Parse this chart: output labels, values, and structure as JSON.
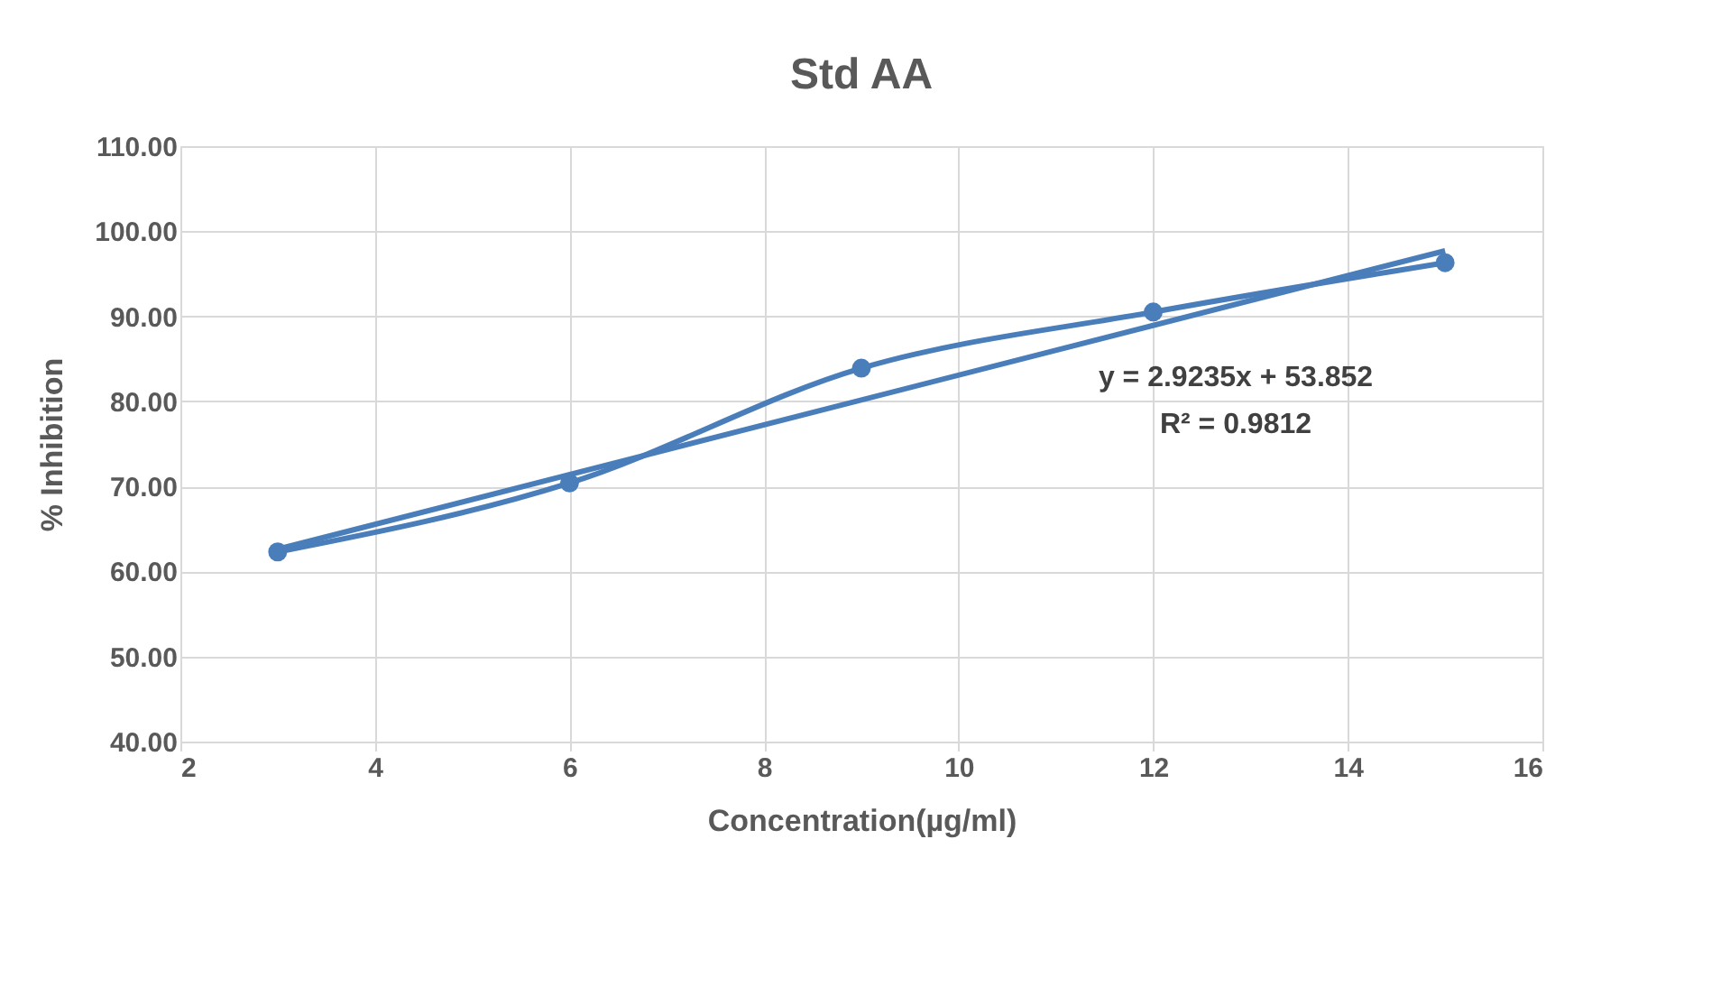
{
  "chart_data": {
    "type": "line",
    "title": "Std AA",
    "xlabel": "Concentration(µg/ml)",
    "ylabel": "% Inhibition",
    "series": [
      {
        "x": [
          3,
          6,
          9,
          12,
          15
        ],
        "values": [
          62.3,
          70.4,
          83.9,
          90.5,
          96.3
        ],
        "color": "#4a7ebb",
        "marker": "circle"
      },
      {
        "type": "line",
        "x": [
          3,
          15
        ],
        "values": [
          62.62,
          97.7
        ],
        "color": "#4a7ebb",
        "marker": "none"
      }
    ],
    "xlim": [
      2,
      16
    ],
    "xticks": [
      2,
      4,
      6,
      8,
      10,
      12,
      14,
      16
    ],
    "ylim": [
      40,
      110
    ],
    "yticks": [
      {
        "value": 40,
        "label": "40.00"
      },
      {
        "value": 50,
        "label": "50.00"
      },
      {
        "value": 60,
        "label": "60.00"
      },
      {
        "value": 70,
        "label": "70.00"
      },
      {
        "value": 80,
        "label": "80.00"
      },
      {
        "value": 90,
        "label": "90.00"
      },
      {
        "value": 100,
        "label": "100.00"
      },
      {
        "value": 110,
        "label": "110.00"
      }
    ],
    "annotations": [
      "y = 2.9235x + 53.852",
      "R² = 0.9812"
    ],
    "grid": true,
    "line_style": "solid"
  }
}
